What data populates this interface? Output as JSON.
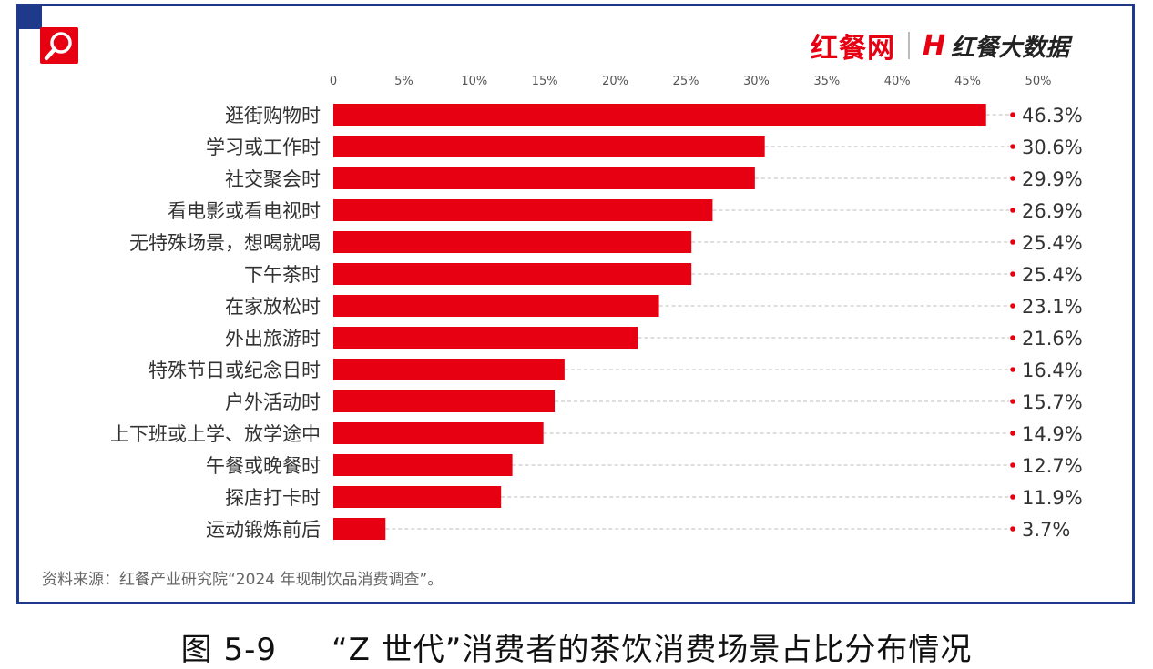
{
  "brand": {
    "logo_primary": "红餐网",
    "logo_secondary_mark": "H",
    "logo_secondary": "红餐大数据"
  },
  "source": "资料来源：红餐产业研究院“2024 年现制饮品消费调查”。",
  "caption": {
    "figure_no": "图 5-9",
    "title": "“Z 世代”消费者的茶饮消费场景占比分布情况"
  },
  "colors": {
    "bar": "#e60012",
    "frame": "#1f3a8a"
  },
  "chart_data": {
    "type": "bar",
    "orientation": "horizontal",
    "categories": [
      "逛街购物时",
      "学习或工作时",
      "社交聚会时",
      "看电影或看电视时",
      "无特殊场景，想喝就喝",
      "下午茶时",
      "在家放松时",
      "外出旅游时",
      "特殊节日或纪念日时",
      "户外活动时",
      "上下班或上学、放学途中",
      "午餐或晚餐时",
      "探店打卡时",
      "运动锻炼前后"
    ],
    "values": [
      46.3,
      30.6,
      29.9,
      26.9,
      25.4,
      25.4,
      23.1,
      21.6,
      16.4,
      15.7,
      14.9,
      12.7,
      11.9,
      3.7
    ],
    "value_labels": [
      "46.3%",
      "30.6%",
      "29.9%",
      "26.9%",
      "25.4%",
      "25.4%",
      "23.1%",
      "21.6%",
      "16.4%",
      "15.7%",
      "14.9%",
      "12.7%",
      "11.9%",
      "3.7%"
    ],
    "x_ticks": [
      "0",
      "5%",
      "10%",
      "15%",
      "20%",
      "25%",
      "30%",
      "35%",
      "40%",
      "45%",
      "50%"
    ],
    "xlim": [
      0,
      50
    ],
    "axis_position": "top",
    "grid": "dashed leader lines to labels"
  }
}
